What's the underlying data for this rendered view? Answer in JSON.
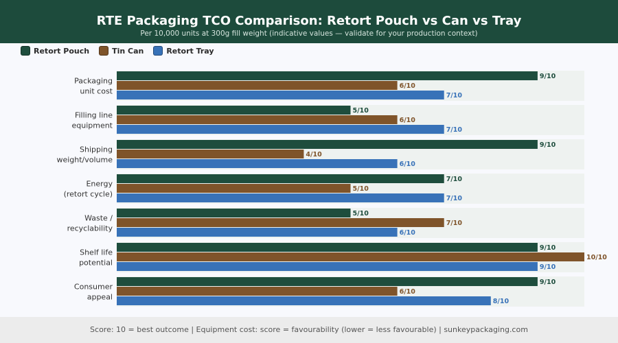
{
  "header": {
    "title": "RTE Packaging TCO Comparison: Retort Pouch vs Can vs Tray",
    "subtitle": "Per 10,000 units at 300g fill weight (indicative values — validate for your production context)"
  },
  "legend": [
    {
      "label": "Retort Pouch",
      "color": "#1e4d3d"
    },
    {
      "label": "Tin Can",
      "color": "#7f542a"
    },
    {
      "label": "Retort Tray",
      "color": "#3872b8"
    }
  ],
  "chart_data": {
    "type": "bar",
    "orientation": "horizontal",
    "categories": [
      [
        "Packaging",
        "unit cost"
      ],
      [
        "Filling line",
        "equipment"
      ],
      [
        "Shipping",
        "weight/volume"
      ],
      [
        "Energy",
        "(retort cycle)"
      ],
      [
        "Waste /",
        "recyclability"
      ],
      [
        "Shelf life",
        "potential"
      ],
      [
        "Consumer",
        "appeal"
      ]
    ],
    "series": [
      {
        "name": "Retort Pouch",
        "color": "#1e4d3d",
        "values": [
          9,
          5,
          9,
          7,
          5,
          9,
          9
        ],
        "labels": [
          "9/10",
          "5/10",
          "9/10",
          "7/10",
          "5/10",
          "9/10",
          "9/10"
        ]
      },
      {
        "name": "Tin Can",
        "color": "#7f542a",
        "values": [
          6,
          6,
          4,
          5,
          7,
          10,
          6
        ],
        "labels": [
          "6/10",
          "6/10",
          "4/10",
          "5/10",
          "7/10",
          "10/10",
          "6/10"
        ]
      },
      {
        "name": "Retort Tray",
        "color": "#3872b8",
        "values": [
          7,
          7,
          6,
          7,
          6,
          9,
          8
        ],
        "labels": [
          "7/10",
          "7/10",
          "6/10",
          "7/10",
          "6/10",
          "9/10",
          "8/10"
        ]
      }
    ],
    "xlim": [
      0,
      10
    ],
    "grid": false,
    "legend_position": "top-left"
  },
  "footer": {
    "text": "Score: 10 = best outcome  |  Equipment cost: score = favourability (lower = less favourable)  |  sunkeypackaging.com"
  }
}
